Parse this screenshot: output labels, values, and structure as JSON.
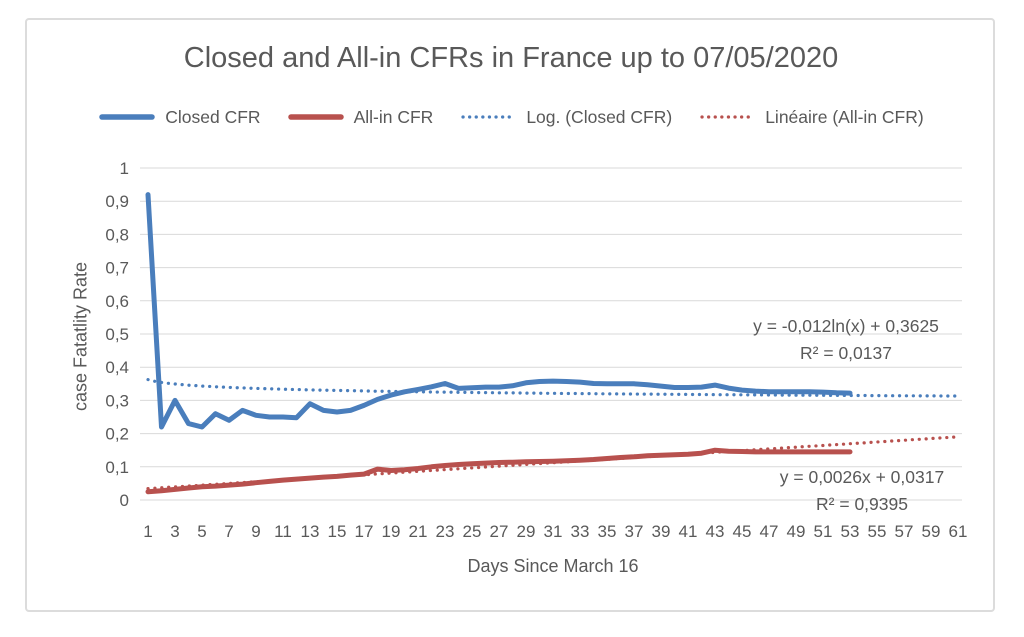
{
  "chart_data": {
    "type": "line",
    "title": "Closed and All-in CFRs in France up to 07/05/2020",
    "x_axis_title": "Days Since March 16",
    "y_axis_title": "case Fatatlity Rate",
    "xlim": [
      1,
      61
    ],
    "ylim": [
      0,
      1
    ],
    "grid": "horizontal",
    "legend_position": "top",
    "x_ticks": [
      1,
      3,
      5,
      7,
      9,
      11,
      13,
      15,
      17,
      19,
      21,
      23,
      25,
      27,
      29,
      31,
      33,
      35,
      37,
      39,
      41,
      43,
      45,
      47,
      49,
      51,
      53,
      55,
      57,
      59,
      61
    ],
    "y_tick_values": [
      0,
      0.1,
      0.2,
      0.3,
      0.4,
      0.5,
      0.6,
      0.7,
      0.8,
      0.9,
      1
    ],
    "y_tick_labels": [
      "0",
      "0,1",
      "0,2",
      "0,3",
      "0,4",
      "0,5",
      "0,6",
      "0,7",
      "0,8",
      "0,9",
      "1"
    ],
    "x": [
      1,
      2,
      3,
      4,
      5,
      6,
      7,
      8,
      9,
      10,
      11,
      12,
      13,
      14,
      15,
      16,
      17,
      18,
      19,
      20,
      21,
      22,
      23,
      24,
      25,
      26,
      27,
      28,
      29,
      30,
      31,
      32,
      33,
      34,
      35,
      36,
      37,
      38,
      39,
      40,
      41,
      42,
      43,
      44,
      45,
      46,
      47,
      48,
      49,
      50,
      51,
      52,
      53
    ],
    "series": [
      {
        "name": "Closed CFR",
        "color": "#4a7ebc",
        "style": "solid",
        "values": [
          0.92,
          0.22,
          0.3,
          0.23,
          0.22,
          0.26,
          0.24,
          0.27,
          0.255,
          0.25,
          0.25,
          0.248,
          0.29,
          0.27,
          0.265,
          0.27,
          0.285,
          0.303,
          0.316,
          0.326,
          0.333,
          0.341,
          0.351,
          0.336,
          0.338,
          0.34,
          0.34,
          0.344,
          0.353,
          0.357,
          0.358,
          0.357,
          0.355,
          0.351,
          0.35,
          0.35,
          0.35,
          0.347,
          0.343,
          0.339,
          0.339,
          0.34,
          0.346,
          0.337,
          0.331,
          0.328,
          0.326,
          0.326,
          0.326,
          0.326,
          0.325,
          0.323,
          0.322
        ]
      },
      {
        "name": "All-in CFR",
        "color": "#b8514e",
        "style": "solid",
        "values": [
          0.025,
          0.028,
          0.032,
          0.036,
          0.04,
          0.042,
          0.045,
          0.048,
          0.052,
          0.056,
          0.06,
          0.063,
          0.066,
          0.069,
          0.071,
          0.075,
          0.078,
          0.093,
          0.089,
          0.091,
          0.095,
          0.1,
          0.104,
          0.107,
          0.109,
          0.111,
          0.113,
          0.114,
          0.115,
          0.116,
          0.117,
          0.118,
          0.12,
          0.122,
          0.125,
          0.128,
          0.13,
          0.133,
          0.135,
          0.136,
          0.138,
          0.141,
          0.15,
          0.147,
          0.146,
          0.145,
          0.145,
          0.145,
          0.145,
          0.145,
          0.145,
          0.145,
          0.145
        ]
      },
      {
        "name": "Log. (Closed CFR)",
        "color": "#4a7ebc",
        "style": "dotted",
        "trend": "log",
        "params": {
          "a": -0.012,
          "b": 0.3625
        },
        "x_range": [
          1,
          61
        ],
        "equation": "y = -0,012ln(x) + 0,3625",
        "r2": "R² = 0,0137"
      },
      {
        "name": "Linéaire (All-in CFR)",
        "color": "#b8514e",
        "style": "dotted",
        "trend": "linear",
        "params": {
          "m": 0.0026,
          "b": 0.0317
        },
        "x_range": [
          1,
          61
        ],
        "equation": "y = 0,0026x + 0,0317",
        "r2": "R² = 0,9395"
      }
    ],
    "colors": {
      "closed_cfr": "#4a7ebc",
      "all_in_cfr": "#b8514e",
      "text": "#595959",
      "gridline": "#d9d9d9"
    }
  }
}
